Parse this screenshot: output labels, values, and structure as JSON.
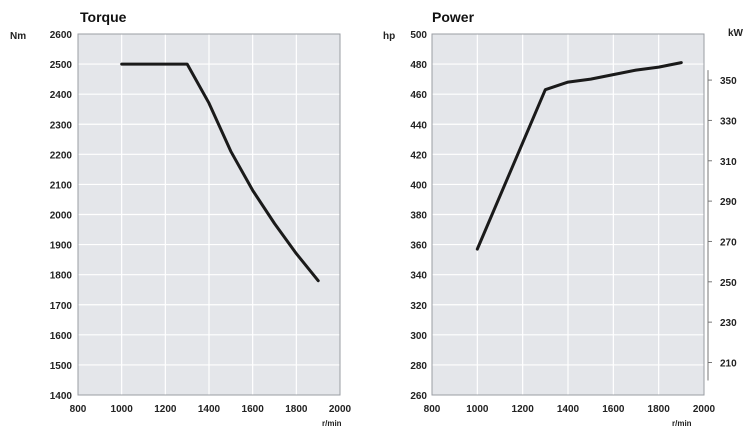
{
  "chart_data": [
    {
      "type": "line",
      "title": "Torque",
      "ylabel": "Nm",
      "xlabel": "r/min",
      "xlim": [
        800,
        2000
      ],
      "ylim": [
        1400,
        2600
      ],
      "x_ticks": [
        "800",
        "1000",
        "1200",
        "1400",
        "1600",
        "1800",
        "2000"
      ],
      "y_ticks": [
        "1400",
        "1500",
        "1600",
        "1700",
        "1800",
        "1900",
        "2000",
        "2100",
        "2200",
        "2300",
        "2400",
        "2500",
        "2600"
      ],
      "grid": true,
      "series": [
        {
          "x": [
            1000,
            1100,
            1200,
            1300,
            1400,
            1500,
            1600,
            1700,
            1800,
            1900
          ],
          "values": [
            2500,
            2500,
            2500,
            2500,
            2370,
            2210,
            2080,
            1970,
            1870,
            1780
          ]
        }
      ]
    },
    {
      "type": "line",
      "title": "Power",
      "ylabel": "hp",
      "y2label": "kW",
      "xlabel": "r/min",
      "xlim": [
        800,
        2000
      ],
      "ylim": [
        260,
        500
      ],
      "x_ticks": [
        "800",
        "1000",
        "1200",
        "1400",
        "1600",
        "1800",
        "2000"
      ],
      "y_ticks": [
        "260",
        "280",
        "300",
        "320",
        "340",
        "360",
        "380",
        "400",
        "420",
        "440",
        "460",
        "480",
        "500"
      ],
      "y2_ticks": [
        "210",
        "230",
        "250",
        "270",
        "290",
        "310",
        "330",
        "350"
      ],
      "grid": true,
      "series": [
        {
          "x": [
            1000,
            1300,
            1400,
            1500,
            1600,
            1700,
            1800,
            1900
          ],
          "values": [
            357,
            463,
            468,
            470,
            473,
            476,
            478,
            481
          ]
        }
      ]
    }
  ]
}
